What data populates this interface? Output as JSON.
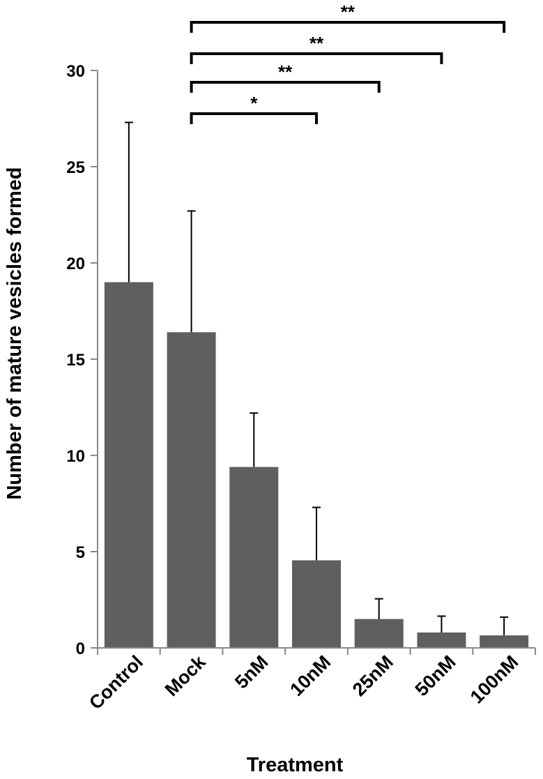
{
  "chart_data": {
    "type": "bar",
    "categories": [
      "Control",
      "Mock",
      "5nM",
      "10nM",
      "25nM",
      "50nM",
      "100nM"
    ],
    "values": [
      19.0,
      16.4,
      9.4,
      4.55,
      1.5,
      0.8,
      0.65
    ],
    "error_plus": [
      8.3,
      6.3,
      2.8,
      2.75,
      1.05,
      0.85,
      0.95
    ],
    "xlabel": "Treatment",
    "ylabel": "Number of mature vesicles formed",
    "ylim": [
      0,
      30
    ],
    "yticks": [
      0,
      5,
      10,
      15,
      20,
      25,
      30
    ],
    "grid": false,
    "bar_color": "#5f5f5f",
    "significance": [
      {
        "from": "Mock",
        "to": "10nM",
        "label": "*"
      },
      {
        "from": "Mock",
        "to": "25nM",
        "label": "**"
      },
      {
        "from": "Mock",
        "to": "50nM",
        "label": "**"
      },
      {
        "from": "Mock",
        "to": "100nM",
        "label": "**"
      }
    ]
  }
}
